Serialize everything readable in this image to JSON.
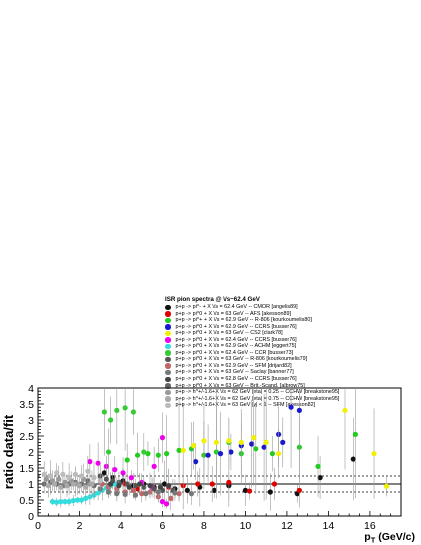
{
  "chart_data": {
    "type": "scatter",
    "title": "ISR pion spectra @ \\/s~62.4 GeV",
    "xlabel": "p_T (GeV/c)",
    "ylabel": "ratio data/fit",
    "xlim": [
      0,
      17.5
    ],
    "ylim": [
      0,
      4
    ],
    "xticks": [
      0,
      2,
      4,
      6,
      8,
      10,
      12,
      14,
      16
    ],
    "yticks": [
      0,
      0.5,
      1,
      1.5,
      2,
      2.5,
      3,
      3.5,
      4
    ],
    "reference_lines": [
      1.0,
      1.25,
      0.75
    ],
    "legend_position": "top-center",
    "series": [
      {
        "name": "p+p -> pi^- + X \\/s = 62.4 GeV -- CMOR [angelis89]",
        "color": "#111111",
        "points": [
          [
            3.2,
            1.35
          ],
          [
            3.6,
            1.2
          ],
          [
            4.1,
            1.1
          ],
          [
            4.6,
            0.95
          ],
          [
            5.1,
            1.0
          ],
          [
            5.6,
            0.9
          ],
          [
            6.1,
            1.0
          ],
          [
            6.6,
            0.85
          ],
          [
            7.2,
            0.8
          ],
          [
            7.8,
            0.9
          ],
          [
            8.5,
            0.8
          ],
          [
            9.2,
            0.95
          ],
          [
            10.0,
            0.8
          ],
          [
            11.2,
            0.75
          ],
          [
            12.5,
            0.7
          ],
          [
            13.6,
            1.2
          ],
          [
            15.2,
            1.78
          ]
        ]
      },
      {
        "name": "p+p -> pi^0 + X \\/s = 63 GeV -- AFS [akesson89]",
        "color": "#e00000",
        "points": [
          [
            4.2,
            1.0
          ],
          [
            4.8,
            0.85
          ],
          [
            5.5,
            0.9
          ],
          [
            6.3,
            0.9
          ],
          [
            7.0,
            0.95
          ],
          [
            7.7,
            1.0
          ],
          [
            8.4,
            1.0
          ],
          [
            9.2,
            1.05
          ],
          [
            10.2,
            0.78
          ],
          [
            11.4,
            1.0
          ],
          [
            12.6,
            0.8
          ]
        ]
      },
      {
        "name": "p+p -> pi^+ + X \\/s = 62.9 GeV -- R-806 [kourkoumelis80]",
        "color": "#22cc22",
        "points": [
          [
            4.3,
            1.75
          ],
          [
            4.8,
            1.9
          ],
          [
            5.3,
            1.95
          ],
          [
            5.8,
            1.9
          ],
          [
            6.2,
            1.95
          ],
          [
            6.8,
            2.05
          ],
          [
            7.4,
            2.1
          ],
          [
            8.0,
            1.9
          ],
          [
            8.6,
            2.0
          ],
          [
            9.2,
            2.3
          ],
          [
            9.8,
            1.95
          ],
          [
            10.5,
            2.1
          ],
          [
            11.3,
            1.95
          ],
          [
            12.6,
            2.15
          ],
          [
            13.5,
            1.55
          ],
          [
            15.3,
            2.55
          ]
        ]
      },
      {
        "name": "p+p -> pi^0 + X \\/s = 62.9 GeV -- CCRS [busser76]",
        "color": "#1a1acc",
        "points": [
          [
            7.6,
            1.7
          ],
          [
            8.2,
            1.9
          ],
          [
            8.8,
            1.95
          ],
          [
            9.3,
            2.0
          ],
          [
            9.8,
            2.2
          ],
          [
            10.3,
            2.25
          ],
          [
            10.9,
            2.15
          ],
          [
            11.6,
            2.55
          ],
          [
            12.2,
            3.4
          ],
          [
            12.6,
            3.3
          ],
          [
            11.8,
            2.3
          ]
        ]
      },
      {
        "name": "p+p -> pi^0 + X \\/s = 63 GeV -- CS2 [clark78]",
        "color": "#f0f000",
        "points": [
          [
            7.0,
            2.05
          ],
          [
            7.5,
            2.2
          ],
          [
            8.0,
            2.35
          ],
          [
            8.6,
            2.3
          ],
          [
            9.2,
            2.35
          ],
          [
            9.8,
            2.3
          ],
          [
            10.4,
            2.45
          ],
          [
            11.0,
            2.3
          ],
          [
            11.6,
            1.95
          ],
          [
            14.8,
            3.3
          ],
          [
            16.2,
            1.95
          ],
          [
            16.8,
            0.93
          ]
        ]
      },
      {
        "name": "p+p -> pi^0 + X \\/s = 62.4 GeV -- CCRS [busser76]",
        "color": "#ee00ee",
        "points": [
          [
            2.5,
            1.7
          ],
          [
            2.9,
            1.65
          ],
          [
            3.3,
            1.55
          ],
          [
            3.7,
            1.45
          ],
          [
            4.1,
            1.35
          ],
          [
            4.5,
            1.2
          ],
          [
            5.0,
            1.05
          ],
          [
            5.5,
            0.9
          ],
          [
            6.0,
            0.45
          ],
          [
            6.2,
            0.38
          ],
          [
            6.0,
            2.45
          ],
          [
            5.6,
            1.55
          ]
        ]
      },
      {
        "name": "p+p -> pi^0 + X \\/s = 62.9 GeV -- ACHM [eggert75]",
        "color": "#33dddd",
        "points": [
          [
            0.7,
            0.45
          ],
          [
            0.9,
            0.43
          ],
          [
            1.1,
            0.45
          ],
          [
            1.3,
            0.45
          ],
          [
            1.5,
            0.45
          ],
          [
            1.7,
            0.48
          ],
          [
            1.9,
            0.5
          ],
          [
            2.1,
            0.5
          ],
          [
            2.3,
            0.55
          ],
          [
            2.5,
            0.6
          ],
          [
            2.7,
            0.65
          ],
          [
            2.9,
            0.72
          ],
          [
            3.1,
            0.8
          ],
          [
            3.3,
            0.88
          ],
          [
            3.5,
            0.95
          ],
          [
            3.7,
            1.0
          ],
          [
            3.9,
            1.05
          ]
        ]
      },
      {
        "name": "p+p -> pi^0 + X \\/s = 62.4 GeV -- CCR [busser73]",
        "color": "#33cc33",
        "points": [
          [
            3.2,
            3.25
          ],
          [
            3.5,
            3.0
          ],
          [
            3.8,
            3.3
          ],
          [
            4.2,
            3.38
          ],
          [
            4.6,
            3.25
          ],
          [
            5.1,
            2.0
          ],
          [
            3.4,
            2.0
          ]
        ]
      },
      {
        "name": "p+p -> pi^0 + X \\/s = 63 GeV -- R-806 [kourkoumelis79]",
        "color": "#555555",
        "points": [
          [
            3.0,
            1.25
          ],
          [
            3.3,
            1.15
          ],
          [
            3.6,
            1.1
          ],
          [
            3.9,
            1.05
          ],
          [
            4.3,
            1.0
          ],
          [
            4.7,
            0.95
          ],
          [
            5.1,
            0.9
          ],
          [
            5.6,
            0.85
          ],
          [
            6.0,
            0.8
          ],
          [
            6.5,
            0.8
          ]
        ]
      },
      {
        "name": "p+p -> pi^0 + X \\/s = 62.9 GeV -- SFM [drijard82]",
        "color": "#c06666",
        "points": [
          [
            3.1,
            1.0
          ],
          [
            3.4,
            0.9
          ],
          [
            3.8,
            0.85
          ],
          [
            4.2,
            0.75
          ],
          [
            4.6,
            0.8
          ],
          [
            5.0,
            0.7
          ],
          [
            5.4,
            0.75
          ],
          [
            5.8,
            0.6
          ],
          [
            6.4,
            0.55
          ],
          [
            6.8,
            0.7
          ]
        ]
      },
      {
        "name": "p+p -> pi^0 + X \\/s = 63 GeV -- Saclay [banner77]",
        "color": "#777777",
        "points": [
          [
            3.0,
            0.85
          ],
          [
            3.4,
            0.75
          ],
          [
            3.8,
            0.7
          ],
          [
            4.2,
            0.68
          ],
          [
            4.7,
            0.65
          ],
          [
            5.2,
            0.7
          ],
          [
            5.8,
            0.75
          ],
          [
            6.6,
            0.72
          ],
          [
            7.4,
            0.7
          ]
        ]
      },
      {
        "name": "p+p -> pi^0 + X \\/s = 62.8 GeV -- CCRS [busser76]",
        "color": "#444444",
        "points": [
          [
            3.5,
            1.0
          ],
          [
            3.9,
            0.95
          ],
          [
            4.4,
            0.9
          ],
          [
            4.9,
            1.0
          ],
          [
            5.4,
            0.95
          ],
          [
            5.9,
            0.9
          ],
          [
            6.3,
            0.95
          ]
        ]
      },
      {
        "name": "p+p -> pi^0 + X \\/s = 63 GeV -- Brit.-Scand. [albrow75]",
        "color": "#666666",
        "points": [
          [
            0.3,
            1.0
          ],
          [
            0.6,
            1.05
          ],
          [
            0.9,
            1.0
          ],
          [
            1.2,
            0.95
          ],
          [
            1.5,
            1.0
          ],
          [
            1.8,
            1.05
          ],
          [
            2.1,
            1.0
          ],
          [
            2.4,
            1.1
          ],
          [
            2.7,
            0.95
          ]
        ]
      },
      {
        "name": "p+p -> h^+/-1.6+X \\/s = 62 GeV |eta| = 0.25 -- CCHW [breakstone95]",
        "color": "#999999",
        "points": [
          [
            0.4,
            1.15
          ],
          [
            0.7,
            1.1
          ],
          [
            1.0,
            1.15
          ],
          [
            1.3,
            1.05
          ],
          [
            1.6,
            1.1
          ],
          [
            1.9,
            1.0
          ],
          [
            2.2,
            1.15
          ],
          [
            2.5,
            1.0
          ]
        ]
      },
      {
        "name": "p+p -> h^+/-1.6+X \\/s = 62 GeV |eta| = 0.75 -- CCHW [breakstone95]",
        "color": "#aaaaaa",
        "points": [
          [
            0.5,
            0.95
          ],
          [
            0.8,
            1.0
          ],
          [
            1.1,
            0.9
          ],
          [
            1.4,
            0.95
          ],
          [
            1.7,
            1.0
          ],
          [
            2.0,
            0.95
          ],
          [
            2.3,
            0.9
          ],
          [
            2.6,
            1.0
          ]
        ]
      },
      {
        "name": "p+p -> h^+/-1.6+X \\/s = 63 GeV |y| < 1 -- SFM [akesson82]",
        "color": "#bbbbbb",
        "points": [
          [
            0.3,
            1.3
          ],
          [
            0.6,
            1.25
          ],
          [
            0.9,
            1.35
          ],
          [
            1.2,
            1.3
          ],
          [
            1.5,
            1.2
          ],
          [
            1.8,
            1.3
          ],
          [
            2.1,
            1.25
          ],
          [
            2.4,
            1.4
          ],
          [
            2.7,
            1.2
          ],
          [
            3.0,
            1.1
          ]
        ]
      }
    ]
  }
}
